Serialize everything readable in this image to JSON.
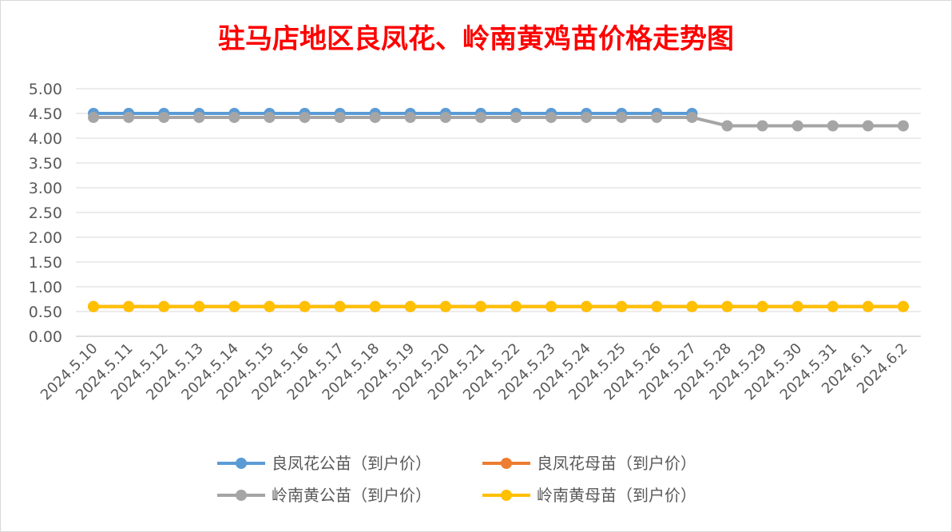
{
  "chart_data": {
    "type": "line",
    "title": "驻马店地区良凤花、岭南黄鸡苗价格走势图",
    "title_color": "#ff0000",
    "xlabel": "",
    "ylabel": "",
    "ylim": [
      0,
      5
    ],
    "y_ticks": [
      "0.00",
      "0.50",
      "1.00",
      "1.50",
      "2.00",
      "2.50",
      "3.00",
      "3.50",
      "4.00",
      "4.50",
      "5.00"
    ],
    "grid": true,
    "legend_position": "bottom",
    "categories": [
      "2024.5.10",
      "2024.5.11",
      "2024.5.12",
      "2024.5.13",
      "2024.5.14",
      "2024.5.15",
      "2024.5.16",
      "2024.5.17",
      "2024.5.18",
      "2024.5.19",
      "2024.5.20",
      "2024.5.21",
      "2024.5.22",
      "2024.5.23",
      "2024.5.24",
      "2024.5.25",
      "2024.5.26",
      "2024.5.27",
      "2024.5.28",
      "2024.5.29",
      "2024.5.30",
      "2024.5.31",
      "2024.6.1",
      "2024.6.2"
    ],
    "series": [
      {
        "name": "良凤花公苗（到户价）",
        "color": "#5b9bd5",
        "values": [
          4.5,
          4.5,
          4.5,
          4.5,
          4.5,
          4.5,
          4.5,
          4.5,
          4.5,
          4.5,
          4.5,
          4.5,
          4.5,
          4.5,
          4.5,
          4.5,
          4.5,
          4.5,
          null,
          null,
          null,
          null,
          null,
          null
        ]
      },
      {
        "name": "良凤花母苗（到户价）",
        "color": "#ed7d31",
        "values": [
          0.6,
          0.6,
          0.6,
          0.6,
          0.6,
          0.6,
          0.6,
          0.6,
          0.6,
          0.6,
          0.6,
          0.6,
          0.6,
          0.6,
          0.6,
          0.6,
          0.6,
          0.6,
          0.6,
          0.6,
          0.6,
          0.6,
          0.6,
          0.6
        ]
      },
      {
        "name": "岭南黄公苗（到户价）",
        "color": "#a5a5a5",
        "values": [
          4.42,
          4.42,
          4.42,
          4.42,
          4.42,
          4.42,
          4.42,
          4.42,
          4.42,
          4.42,
          4.42,
          4.42,
          4.42,
          4.42,
          4.42,
          4.42,
          4.42,
          4.42,
          4.25,
          4.25,
          4.25,
          4.25,
          4.25,
          4.25
        ]
      },
      {
        "name": "岭南黄母苗（到户价）",
        "color": "#ffc000",
        "values": [
          0.6,
          0.6,
          0.6,
          0.6,
          0.6,
          0.6,
          0.6,
          0.6,
          0.6,
          0.6,
          0.6,
          0.6,
          0.6,
          0.6,
          0.6,
          0.6,
          0.6,
          0.6,
          0.6,
          0.6,
          0.6,
          0.6,
          0.6,
          0.6
        ]
      }
    ]
  }
}
